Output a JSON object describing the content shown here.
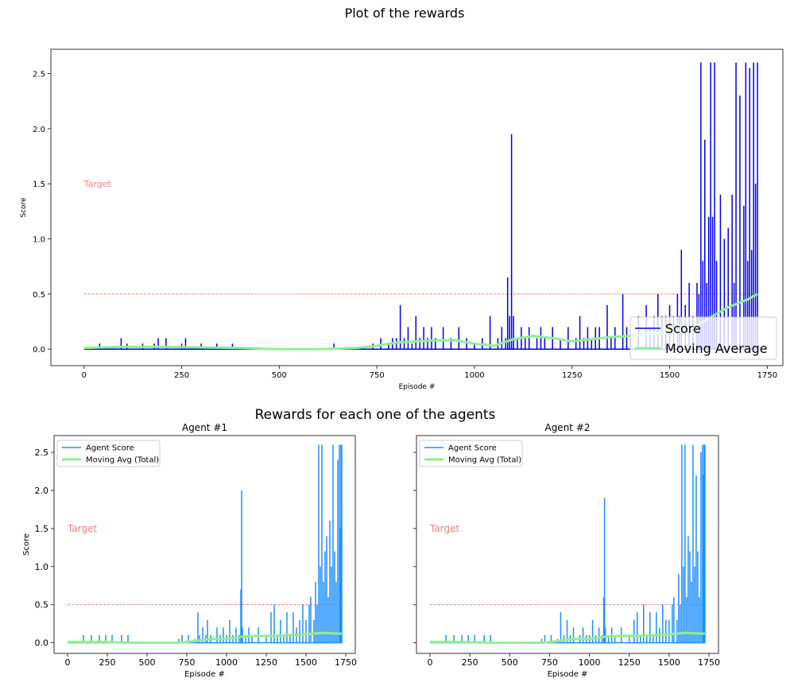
{
  "figure": {
    "title": "Plot of the rewards",
    "subtitle": "Rewards for each one of the agents"
  },
  "colors": {
    "score": "#0000ee",
    "moving_avg": "#90ee90",
    "agent_score": "#1e90ff",
    "target": "#f08080"
  },
  "chart_data": [
    {
      "type": "line",
      "panel": "main",
      "title": "",
      "xlabel": "Episode #",
      "ylabel": "Score",
      "xlim": [
        -85,
        1790
      ],
      "ylim": [
        -0.15,
        2.72
      ],
      "xticks": [
        0,
        250,
        500,
        750,
        1000,
        1250,
        1500,
        1750
      ],
      "yticks": [
        0.0,
        0.5,
        1.0,
        1.5,
        2.0,
        2.5
      ],
      "target": {
        "value": 0.5,
        "label": "Target",
        "x_start": 0,
        "x_end": 1725,
        "label_x": 0,
        "label_y": 1.5
      },
      "legend": {
        "position": "lower-right",
        "entries": [
          "Score",
          "Moving Average"
        ]
      },
      "series": [
        {
          "name": "Score",
          "role": "score",
          "x": [
            0,
            40,
            60,
            80,
            95,
            100,
            110,
            130,
            150,
            170,
            180,
            190,
            200,
            210,
            230,
            250,
            260,
            270,
            300,
            320,
            340,
            360,
            380,
            500,
            640,
            700,
            740,
            760,
            780,
            790,
            800,
            810,
            820,
            830,
            840,
            850,
            860,
            870,
            880,
            890,
            900,
            920,
            940,
            960,
            980,
            1000,
            1020,
            1040,
            1060,
            1070,
            1080,
            1085,
            1090,
            1095,
            1100,
            1110,
            1120,
            1130,
            1140,
            1160,
            1170,
            1180,
            1200,
            1220,
            1240,
            1260,
            1270,
            1280,
            1290,
            1300,
            1310,
            1320,
            1340,
            1350,
            1360,
            1380,
            1390,
            1400,
            1420,
            1440,
            1450,
            1460,
            1470,
            1480,
            1490,
            1500,
            1510,
            1520,
            1525,
            1530,
            1540,
            1550,
            1560,
            1570,
            1575,
            1580,
            1585,
            1590,
            1595,
            1600,
            1605,
            1610,
            1615,
            1620,
            1630,
            1640,
            1650,
            1660,
            1665,
            1670,
            1680,
            1690,
            1695,
            1700,
            1705,
            1710,
            1715,
            1720,
            1725
          ],
          "y": [
            0.0,
            0.05,
            0.0,
            0.0,
            0.1,
            0.0,
            0.05,
            0.0,
            0.05,
            0.0,
            0.05,
            0.1,
            0.0,
            0.1,
            0.0,
            0.05,
            0.1,
            0.0,
            0.05,
            0.0,
            0.05,
            0.0,
            0.05,
            0.0,
            0.05,
            0.0,
            0.05,
            0.1,
            0.05,
            0.1,
            0.1,
            0.4,
            0.1,
            0.2,
            0.05,
            0.3,
            0.1,
            0.2,
            0.1,
            0.2,
            0.1,
            0.2,
            0.1,
            0.2,
            0.1,
            0.05,
            0.1,
            0.3,
            0.1,
            0.2,
            0.1,
            0.65,
            0.3,
            1.95,
            0.3,
            0.1,
            0.2,
            0.1,
            0.2,
            0.1,
            0.2,
            0.1,
            0.2,
            0.1,
            0.2,
            0.1,
            0.3,
            0.1,
            0.2,
            0.1,
            0.2,
            0.2,
            0.4,
            0.1,
            0.2,
            0.5,
            0.2,
            0.1,
            0.3,
            0.4,
            0.2,
            0.3,
            0.5,
            0.3,
            0.3,
            0.4,
            0.3,
            0.5,
            0.3,
            0.9,
            0.4,
            0.6,
            0.3,
            0.6,
            0.5,
            2.6,
            0.8,
            1.9,
            0.6,
            1.2,
            2.6,
            1.2,
            2.6,
            0.8,
            1.4,
            1.0,
            1.1,
            1.4,
            0.6,
            2.6,
            2.3,
            1.3,
            2.6,
            0.8,
            2.55,
            0.9,
            2.6,
            1.5,
            2.6
          ],
          "step_label": "Score"
        },
        {
          "name": "Moving Average",
          "role": "moving_avg",
          "x": [
            0,
            100,
            200,
            300,
            400,
            500,
            600,
            700,
            750,
            800,
            850,
            900,
            950,
            1000,
            1050,
            1100,
            1150,
            1200,
            1250,
            1300,
            1350,
            1400,
            1450,
            1500,
            1550,
            1600,
            1650,
            1700,
            1725
          ],
          "y": [
            0.01,
            0.02,
            0.02,
            0.015,
            0.01,
            0.0,
            0.0,
            0.01,
            0.03,
            0.06,
            0.07,
            0.08,
            0.08,
            0.05,
            0.03,
            0.09,
            0.12,
            0.1,
            0.07,
            0.09,
            0.11,
            0.12,
            0.14,
            0.15,
            0.17,
            0.28,
            0.38,
            0.45,
            0.5
          ]
        }
      ]
    },
    {
      "type": "line",
      "panel": "agent1",
      "title": "Agent #1",
      "xlabel": "Episode #",
      "ylabel": "Score",
      "xlim": [
        -85,
        1810
      ],
      "ylim": [
        -0.14,
        2.72
      ],
      "xticks": [
        0,
        250,
        500,
        750,
        1000,
        1250,
        1500,
        1750
      ],
      "yticks": [
        0.0,
        0.5,
        1.0,
        1.5,
        2.0,
        2.5
      ],
      "target": {
        "value": 0.5,
        "label": "Target",
        "x_start": 0,
        "x_end": 1725,
        "label_x": 0,
        "label_y": 1.5
      },
      "legend": {
        "position": "top-left",
        "entries": [
          "Agent Score",
          "Moving Avg (Total)"
        ]
      },
      "series": [
        {
          "name": "Agent Score",
          "role": "agent_score",
          "x": [
            0,
            100,
            120,
            150,
            180,
            200,
            220,
            240,
            260,
            280,
            300,
            340,
            360,
            380,
            500,
            640,
            700,
            720,
            740,
            760,
            800,
            820,
            830,
            850,
            870,
            880,
            900,
            940,
            960,
            980,
            1000,
            1020,
            1040,
            1060,
            1080,
            1090,
            1095,
            1100,
            1120,
            1140,
            1160,
            1200,
            1250,
            1280,
            1300,
            1320,
            1340,
            1360,
            1380,
            1400,
            1420,
            1440,
            1460,
            1480,
            1500,
            1520,
            1530,
            1550,
            1560,
            1570,
            1580,
            1590,
            1600,
            1610,
            1620,
            1630,
            1640,
            1650,
            1660,
            1670,
            1680,
            1690,
            1700,
            1710,
            1715,
            1720,
            1725
          ],
          "y": [
            0.0,
            0.1,
            0.0,
            0.1,
            0.0,
            0.1,
            0.0,
            0.1,
            0.0,
            0.1,
            0.0,
            0.1,
            0.0,
            0.1,
            0.0,
            0.0,
            0.05,
            0.1,
            0.0,
            0.1,
            0.05,
            0.4,
            0.1,
            0.2,
            0.1,
            0.3,
            0.1,
            0.2,
            0.1,
            0.2,
            0.1,
            0.3,
            0.1,
            0.2,
            0.1,
            0.7,
            2.0,
            0.2,
            0.1,
            0.2,
            0.1,
            0.2,
            0.1,
            0.4,
            0.5,
            0.1,
            0.3,
            0.1,
            0.4,
            0.1,
            0.4,
            0.2,
            0.3,
            0.5,
            0.3,
            0.5,
            0.6,
            0.3,
            0.8,
            0.5,
            2.6,
            1.0,
            2.6,
            0.8,
            1.2,
            1.4,
            0.6,
            1.6,
            1.0,
            2.6,
            1.2,
            0.8,
            2.4,
            2.6,
            1.5,
            2.6,
            2.6
          ]
        },
        {
          "name": "Moving Avg (Total)",
          "role": "moving_avg",
          "x": [
            0,
            200,
            400,
            500,
            700,
            800,
            900,
            1000,
            1100,
            1200,
            1300,
            1400,
            1500,
            1600,
            1700,
            1725
          ],
          "y": [
            0.01,
            0.01,
            0.0,
            0.0,
            0.0,
            0.02,
            0.05,
            0.05,
            0.08,
            0.09,
            0.09,
            0.1,
            0.11,
            0.13,
            0.12,
            0.12
          ]
        }
      ]
    },
    {
      "type": "line",
      "panel": "agent2",
      "title": "Agent #2",
      "xlabel": "Episode #",
      "ylabel": "",
      "xlim": [
        -85,
        1810
      ],
      "ylim": [
        -0.14,
        2.72
      ],
      "xticks": [
        0,
        250,
        500,
        750,
        1000,
        1250,
        1500,
        1750
      ],
      "yticks": [],
      "target": {
        "value": 0.5,
        "label": "Target",
        "x_start": 0,
        "x_end": 1725,
        "label_x": 0,
        "label_y": 1.5
      },
      "legend": {
        "position": "top-left",
        "entries": [
          "Agent Score",
          "Moving Avg (Total)"
        ]
      },
      "series": [
        {
          "name": "Agent Score",
          "role": "agent_score",
          "x": [
            0,
            100,
            120,
            150,
            180,
            200,
            220,
            240,
            260,
            280,
            300,
            340,
            360,
            380,
            500,
            640,
            700,
            720,
            740,
            760,
            800,
            820,
            840,
            860,
            880,
            900,
            940,
            960,
            980,
            1000,
            1020,
            1040,
            1060,
            1080,
            1090,
            1095,
            1100,
            1120,
            1140,
            1160,
            1200,
            1250,
            1280,
            1300,
            1320,
            1340,
            1360,
            1380,
            1400,
            1420,
            1440,
            1460,
            1480,
            1500,
            1520,
            1530,
            1550,
            1560,
            1570,
            1580,
            1590,
            1600,
            1610,
            1620,
            1630,
            1640,
            1650,
            1660,
            1670,
            1680,
            1690,
            1700,
            1710,
            1715,
            1720,
            1725
          ],
          "y": [
            0.0,
            0.1,
            0.0,
            0.1,
            0.0,
            0.1,
            0.0,
            0.1,
            0.0,
            0.1,
            0.0,
            0.1,
            0.0,
            0.1,
            0.0,
            0.0,
            0.05,
            0.1,
            0.0,
            0.1,
            0.05,
            0.4,
            0.1,
            0.3,
            0.1,
            0.2,
            0.1,
            0.2,
            0.1,
            0.1,
            0.3,
            0.1,
            0.2,
            0.1,
            0.6,
            1.9,
            0.2,
            0.1,
            0.2,
            0.1,
            0.2,
            0.1,
            0.3,
            0.4,
            0.1,
            0.5,
            0.1,
            0.4,
            0.1,
            0.4,
            0.2,
            0.5,
            0.3,
            0.3,
            0.5,
            0.6,
            0.3,
            0.9,
            0.5,
            2.6,
            1.0,
            2.6,
            0.6,
            1.4,
            1.2,
            0.8,
            2.6,
            1.0,
            2.2,
            1.2,
            0.6,
            2.5,
            2.6,
            2.2,
            2.6,
            2.6
          ]
        },
        {
          "name": "Moving Avg (Total)",
          "role": "moving_avg",
          "x": [
            0,
            200,
            400,
            500,
            700,
            800,
            900,
            1000,
            1100,
            1200,
            1300,
            1400,
            1500,
            1600,
            1700,
            1725
          ],
          "y": [
            0.01,
            0.01,
            0.0,
            0.0,
            0.0,
            0.02,
            0.05,
            0.05,
            0.08,
            0.09,
            0.09,
            0.1,
            0.11,
            0.13,
            0.12,
            0.12
          ]
        }
      ]
    }
  ]
}
